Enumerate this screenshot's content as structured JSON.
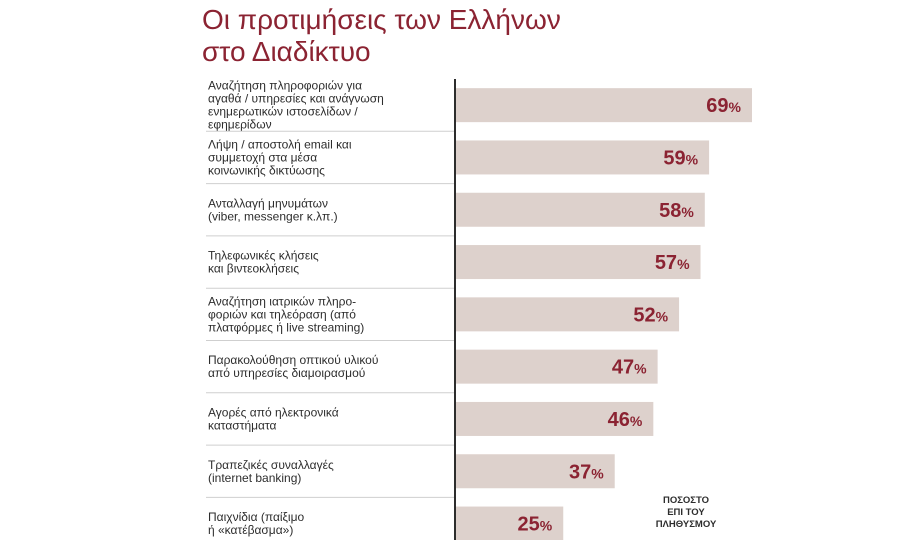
{
  "title_lines": [
    "Οι προτιμήσεις των Ελλήνων",
    "στο Διαδίκτυο"
  ],
  "note_lines": [
    "ΠΟΣΟΣΤΟ",
    "ΕΠΙ ΤΟΥ",
    "ΠΛΗΘΥΣΜΟΥ"
  ],
  "colors": {
    "title": "#8b2332",
    "bar": "#ddd1cc",
    "value": "#8b2332",
    "axis": "#2d2d2d",
    "separator": "#cfcfcf"
  },
  "chart_data": {
    "type": "bar",
    "orientation": "horizontal",
    "title": "Οι προτιμήσεις των Ελλήνων στο Διαδίκτυο",
    "value_unit": "%",
    "categories": [
      [
        "Αναζήτηση πληροφοριών για",
        "αγαθά / υπηρεσίες και ανάγνωση",
        "ενημερωτικών ιστοσελίδων /",
        "εφημερίδων"
      ],
      [
        "Λήψη / αποστολή email και",
        "συμμετοχή στα μέσα",
        "κοινωνικής δικτύωσης"
      ],
      [
        "Ανταλλαγή μηνυμάτων",
        "(viber, messenger κ.λπ.)"
      ],
      [
        "Τηλεφωνικές κλήσεις",
        "και βιντεοκλήσεις"
      ],
      [
        "Αναζήτηση ιατρικών πληρο-",
        "φοριών και τηλεόραση (από",
        "πλατφόρμες ή live streaming)"
      ],
      [
        "Παρακολούθηση οπτικού υλικού",
        "από υπηρεσίες διαμοιρασμού"
      ],
      [
        "Αγορές από ηλεκτρονικά",
        "καταστήματα"
      ],
      [
        "Τραπεζικές συναλλαγές",
        "(internet banking)"
      ],
      [
        "Παιχνίδια (παίξιμο",
        "ή «κατέβασμα»)"
      ]
    ],
    "values": [
      69,
      59,
      58,
      57,
      52,
      47,
      46,
      37,
      25
    ],
    "value_labels": [
      "69",
      "59",
      "58",
      "57",
      "52",
      "47",
      "46",
      "37",
      "25"
    ],
    "xlim": [
      0,
      69
    ],
    "grid": false,
    "legend": "none"
  }
}
